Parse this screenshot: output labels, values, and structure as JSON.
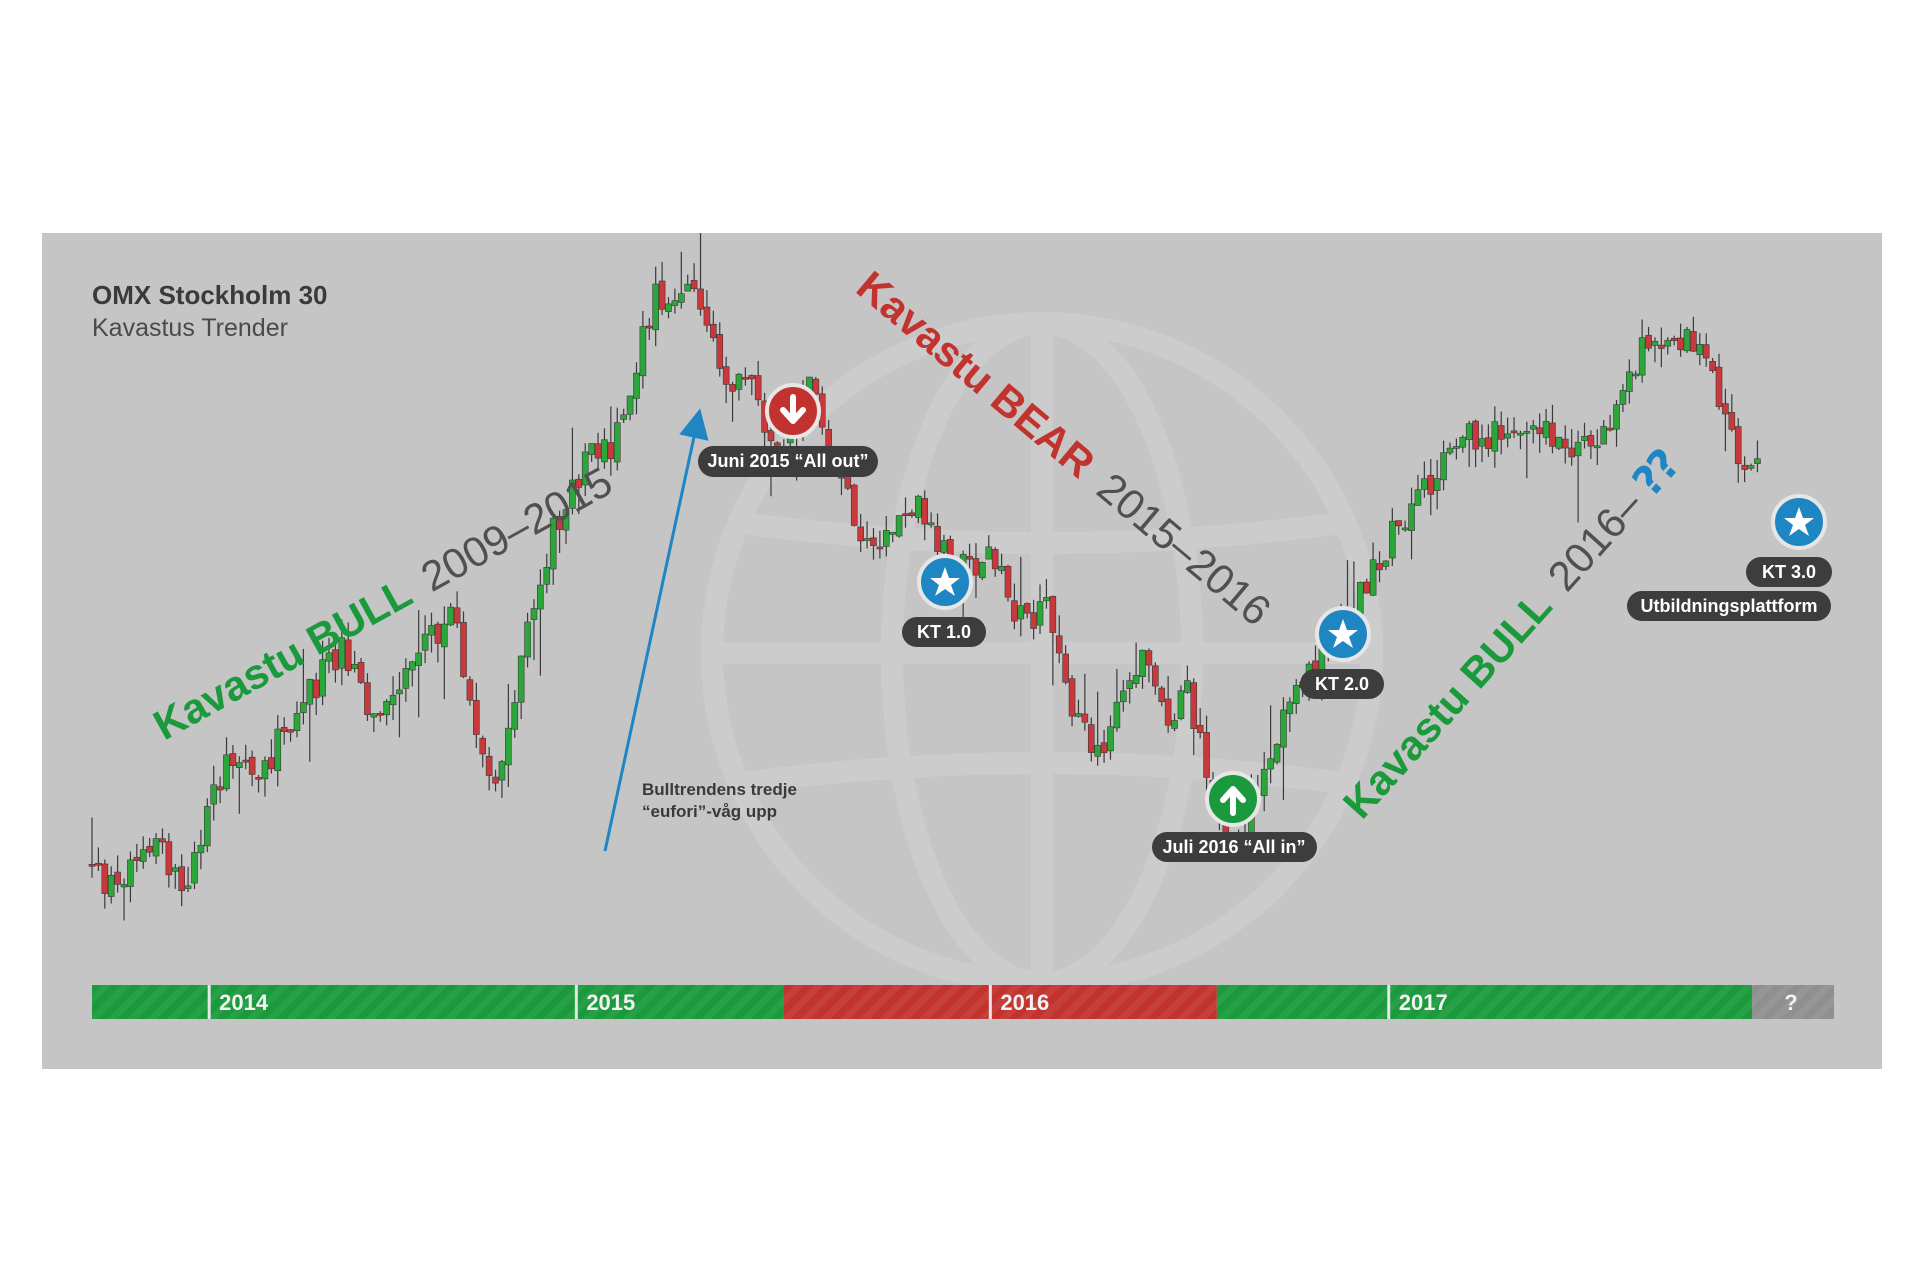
{
  "chart_data": {
    "type": "candlestick",
    "title": "OMX Stockholm 30",
    "subtitle": "Kavastus Trender",
    "x_labels": [
      "2014",
      "2015",
      "2016",
      "2017",
      "?"
    ],
    "ylim": [
      0,
      100
    ],
    "colors": {
      "up": "#2aa63a",
      "down": "#c9383a",
      "bull": "#1a9a3c",
      "bear": "#c2332f",
      "neutral": "#8f8f8f",
      "accent": "#1f86c4",
      "pill": "#3d3d3d"
    },
    "price_path": [
      [
        0,
        11
      ],
      [
        30,
        7
      ],
      [
        90,
        14
      ],
      [
        130,
        8
      ],
      [
        180,
        28
      ],
      [
        230,
        26
      ],
      [
        270,
        35
      ],
      [
        330,
        45
      ],
      [
        370,
        32
      ],
      [
        420,
        44
      ],
      [
        470,
        50
      ],
      [
        520,
        22
      ],
      [
        560,
        44
      ],
      [
        600,
        64
      ],
      [
        640,
        74
      ],
      [
        670,
        76
      ],
      [
        690,
        80
      ],
      [
        710,
        92
      ],
      [
        730,
        100
      ],
      [
        780,
        101
      ],
      [
        820,
        84
      ],
      [
        850,
        88
      ],
      [
        880,
        74
      ],
      [
        930,
        86
      ],
      [
        960,
        75
      ],
      [
        990,
        64
      ],
      [
        1030,
        62
      ],
      [
        1060,
        68
      ],
      [
        1090,
        60
      ],
      [
        1120,
        57
      ],
      [
        1160,
        60
      ],
      [
        1200,
        48
      ],
      [
        1230,
        52
      ],
      [
        1260,
        36
      ],
      [
        1300,
        28
      ],
      [
        1350,
        43
      ],
      [
        1390,
        32
      ],
      [
        1410,
        38
      ],
      [
        1440,
        22
      ],
      [
        1470,
        10
      ],
      [
        1510,
        28
      ],
      [
        1560,
        40
      ],
      [
        1600,
        48
      ],
      [
        1640,
        55
      ],
      [
        1680,
        64
      ],
      [
        1720,
        70
      ],
      [
        1750,
        77
      ],
      [
        1790,
        78
      ],
      [
        1830,
        77
      ],
      [
        1870,
        79
      ],
      [
        1910,
        76
      ],
      [
        1940,
        77
      ],
      [
        1970,
        85
      ],
      [
        2000,
        93
      ],
      [
        2030,
        94
      ],
      [
        2060,
        92
      ],
      [
        2090,
        84
      ],
      [
        2120,
        73
      ],
      [
        2140,
        72
      ]
    ],
    "trends": [
      {
        "label": "Kavastu BULL",
        "years": "2009–2015",
        "type": "bull"
      },
      {
        "label": "Kavastu BEAR",
        "years": "2015–2016",
        "type": "bear"
      },
      {
        "label": "Kavastu BULL",
        "years": "2016–",
        "suffix": "⁇",
        "type": "bull"
      }
    ],
    "timeline": [
      {
        "from": 0,
        "to": 885,
        "type": "bull"
      },
      {
        "from": 885,
        "to": 1440,
        "type": "bear"
      },
      {
        "from": 1440,
        "to": 2125,
        "type": "bull"
      },
      {
        "from": 2125,
        "to": 2230,
        "type": "unknown"
      }
    ],
    "years": [
      {
        "label": "2014",
        "pos": 150
      },
      {
        "label": "2015",
        "pos": 620
      },
      {
        "label": "2016",
        "pos": 1150
      },
      {
        "label": "2017",
        "pos": 1660
      },
      {
        "label": "?",
        "pos": 2175
      }
    ],
    "events": [
      {
        "label": "Juni 2015 “All out”",
        "type": "sell",
        "pos": 880
      },
      {
        "label": "KT 1.0",
        "type": "star",
        "pos": 1110
      },
      {
        "label": "KT 2.0",
        "type": "star",
        "pos": 1600
      },
      {
        "label": "Juli 2016 “All in”",
        "type": "buy",
        "pos": 1440
      },
      {
        "label": "KT 3.0",
        "sublabel": "Utbildningsplattform",
        "type": "star",
        "pos": 2200
      }
    ],
    "annotation": {
      "line1": "Bulltrendens tredje",
      "line2": "“eufori”-våg upp"
    }
  }
}
